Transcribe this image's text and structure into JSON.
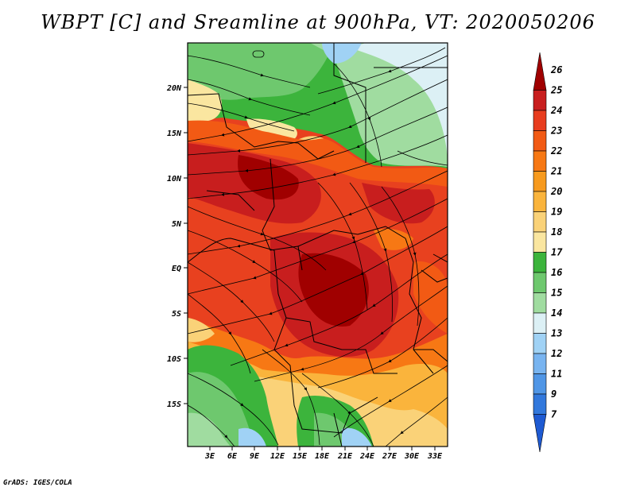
{
  "title": "WBPT [C] and Sreamline at 900hPa, VT: 2020050206",
  "footer": "GrADS: IGES/COLA",
  "map": {
    "lat_labels": [
      "20N",
      "15N",
      "10N",
      "5N",
      "EQ",
      "5S",
      "10S",
      "15S"
    ],
    "lon_labels": [
      "3E",
      "6E",
      "9E",
      "12E",
      "15E",
      "18E",
      "21E",
      "24E",
      "27E",
      "30E",
      "33E"
    ],
    "fields": [
      "wet-bulb potential temperature (shaded)",
      "streamlines"
    ]
  },
  "colorbar": {
    "labels": [
      "26",
      "25",
      "24",
      "23",
      "22",
      "21",
      "20",
      "19",
      "18",
      "17",
      "16",
      "15",
      "14",
      "13",
      "12",
      "11",
      "9",
      "7"
    ],
    "colors": [
      "#a00000",
      "#c81e1e",
      "#e83c1e",
      "#f25a14",
      "#f77814",
      "#f79a1e",
      "#fab43c",
      "#fad278",
      "#fae6a0",
      "#3cb43c",
      "#6ec86e",
      "#a0dca0",
      "#dcf0f5",
      "#a0d2f5",
      "#78b4f0",
      "#5096e6",
      "#3278dc",
      "#1e5ad2"
    ]
  }
}
